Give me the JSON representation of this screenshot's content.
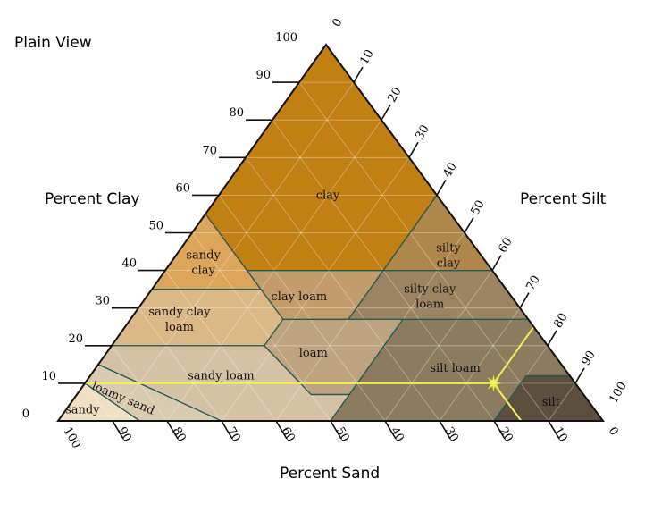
{
  "headings": {
    "view_title": "Plain View",
    "left_axis": "Percent Clay",
    "right_axis": "Percent Silt",
    "bottom_axis": "Percent Sand"
  },
  "colors": {
    "clay": "#c17f14",
    "sandy_clay": "#dda55a",
    "silty_clay": "#b0874a",
    "clay_loam": "#c29d6b",
    "sandy_clay_loam": "#dbb987",
    "silty_clay_loam": "#9c8463",
    "loam": "#bea37f",
    "silt_loam": "#8d7b5f",
    "sandy_loam": "#d5c2a4",
    "loamy_sand": "#d9cab0",
    "sandy": "#f1dfc3",
    "silt": "#5c4f3e",
    "highlight": "#f2f055"
  },
  "regions": [
    {
      "key": "clay",
      "label": "clay",
      "label_lines": [
        "clay"
      ]
    },
    {
      "key": "sandy_clay",
      "label": "sandy clay",
      "label_lines": [
        "sandy",
        "clay"
      ]
    },
    {
      "key": "silty_clay",
      "label": "silty clay",
      "label_lines": [
        "silty",
        "clay"
      ]
    },
    {
      "key": "clay_loam",
      "label": "clay loam",
      "label_lines": [
        "clay loam"
      ]
    },
    {
      "key": "sandy_clay_loam",
      "label": "sandy clay loam",
      "label_lines": [
        "sandy clay",
        "loam"
      ]
    },
    {
      "key": "silty_clay_loam",
      "label": "silty clay loam",
      "label_lines": [
        "silty clay",
        "loam"
      ]
    },
    {
      "key": "loam",
      "label": "loam",
      "label_lines": [
        "loam"
      ]
    },
    {
      "key": "silt_loam",
      "label": "silt loam",
      "label_lines": [
        "silt loam"
      ]
    },
    {
      "key": "sandy_loam",
      "label": "sandy loam",
      "label_lines": [
        "sandy loam"
      ]
    },
    {
      "key": "loamy_sand",
      "label": "loamy sand",
      "label_lines": [
        "loamy sand"
      ]
    },
    {
      "key": "sandy",
      "label": "sandy",
      "label_lines": [
        "sandy"
      ]
    },
    {
      "key": "silt",
      "label": "silt",
      "label_lines": [
        "silt"
      ]
    }
  ],
  "axes": {
    "clay": {
      "ticks": [
        "0",
        "10",
        "20",
        "30",
        "40",
        "50",
        "60",
        "70",
        "80",
        "90",
        "100"
      ]
    },
    "silt": {
      "ticks": [
        "0",
        "10",
        "20",
        "30",
        "40",
        "50",
        "60",
        "70",
        "80",
        "90",
        "100"
      ]
    },
    "sand": {
      "ticks": [
        "100",
        "90",
        "80",
        "70",
        "60",
        "50",
        "40",
        "30",
        "20",
        "10",
        "0"
      ]
    }
  },
  "marked_sample": {
    "clay": 10,
    "silt": 75,
    "sand": 15
  }
}
